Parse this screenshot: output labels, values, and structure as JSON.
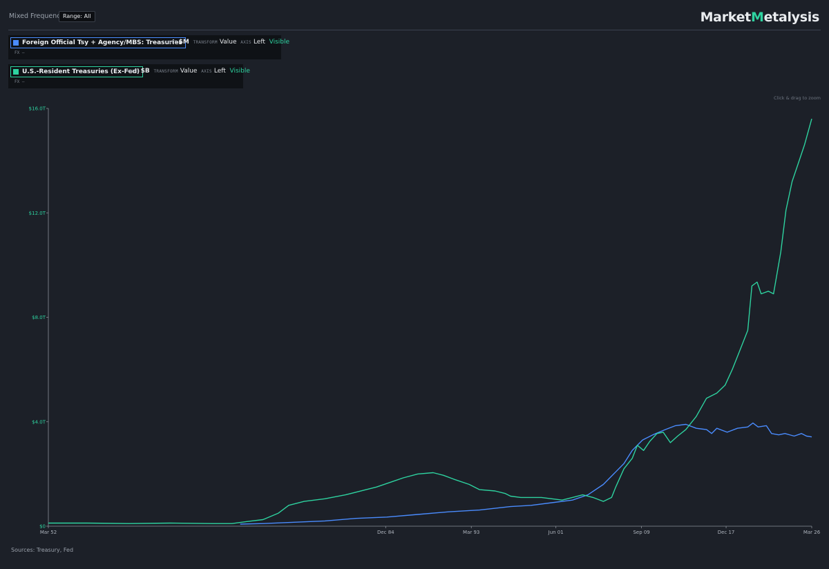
{
  "header": {
    "mode_label": "Mixed Frequency",
    "range_button": "Range: All",
    "logo_part1": "Market",
    "logo_m": "M",
    "logo_part2": "etalysis",
    "zoom_hint": "Click & drag to zoom"
  },
  "series_cards": [
    {
      "name": "Foreign Official Tsy + Agency/MBS: Treasuries",
      "color": "#4a8cff",
      "unit_key": "UNIT",
      "unit": "$M",
      "transform_key": "TRANSFORM",
      "transform": "Value",
      "axis_key": "AXIS",
      "axis": "Left",
      "visibility": "Visible",
      "fx": "FX —"
    },
    {
      "name": "U.S.-Resident Treasuries (Ex-Fed)",
      "color": "#2ed3a0",
      "unit_key": "UNIT",
      "unit": "$B",
      "transform_key": "TRANSFORM",
      "transform": "Value",
      "axis_key": "AXIS",
      "axis": "Left",
      "visibility": "Visible",
      "fx": "FX —"
    }
  ],
  "footer": {
    "sources": "Sources: Treasury, Fed"
  },
  "chart_data": {
    "type": "line",
    "title": "",
    "xlabel": "",
    "ylabel": "",
    "x_tick_labels": [
      "Mar 52",
      "Dec 84",
      "Mar 93",
      "Jun 01",
      "Sep 09",
      "Dec 17",
      "Mar 26"
    ],
    "x_tick_years": [
      1952.2,
      1984.9,
      1993.2,
      2001.4,
      2009.7,
      2017.9,
      2026.2
    ],
    "y_tick_labels": [
      "$0",
      "$4.0T",
      "$8.0T",
      "$12.0T",
      "$16.0T"
    ],
    "y_tick_values": [
      0,
      4,
      8,
      12,
      16
    ],
    "ylim": [
      0,
      16
    ],
    "xlim": [
      1952.2,
      2026.2
    ],
    "grid": false,
    "legend": "top-left",
    "series": [
      {
        "name": "Foreign Official Tsy + Agency/MBS: Treasuries",
        "color": "#4a8cff",
        "points": [
          [
            1970.8,
            0.08
          ],
          [
            1973,
            0.1
          ],
          [
            1976,
            0.15
          ],
          [
            1979,
            0.2
          ],
          [
            1982,
            0.3
          ],
          [
            1985,
            0.35
          ],
          [
            1988,
            0.45
          ],
          [
            1991,
            0.55
          ],
          [
            1994,
            0.62
          ],
          [
            1997,
            0.75
          ],
          [
            1999,
            0.8
          ],
          [
            2001,
            0.9
          ],
          [
            2003,
            1.0
          ],
          [
            2004.5,
            1.2
          ],
          [
            2006,
            1.6
          ],
          [
            2007,
            2.0
          ],
          [
            2008,
            2.4
          ],
          [
            2008.8,
            2.9
          ],
          [
            2009.8,
            3.3
          ],
          [
            2010.8,
            3.5
          ],
          [
            2012,
            3.7
          ],
          [
            2013,
            3.85
          ],
          [
            2014,
            3.9
          ],
          [
            2015,
            3.75
          ],
          [
            2016,
            3.7
          ],
          [
            2016.5,
            3.55
          ],
          [
            2017,
            3.75
          ],
          [
            2018,
            3.6
          ],
          [
            2019,
            3.75
          ],
          [
            2020,
            3.8
          ],
          [
            2020.5,
            3.95
          ],
          [
            2021,
            3.8
          ],
          [
            2021.8,
            3.85
          ],
          [
            2022.3,
            3.55
          ],
          [
            2023,
            3.5
          ],
          [
            2023.6,
            3.55
          ],
          [
            2024.5,
            3.45
          ],
          [
            2025.2,
            3.55
          ],
          [
            2025.7,
            3.45
          ],
          [
            2026.2,
            3.42
          ]
        ]
      },
      {
        "name": "U.S.-Resident Treasuries (Ex-Fed)",
        "color": "#2ed3a0",
        "points": [
          [
            1952.2,
            0.12
          ],
          [
            1956,
            0.12
          ],
          [
            1960,
            0.1
          ],
          [
            1964,
            0.12
          ],
          [
            1968,
            0.1
          ],
          [
            1970,
            0.1
          ],
          [
            1971.5,
            0.18
          ],
          [
            1973,
            0.25
          ],
          [
            1974.5,
            0.5
          ],
          [
            1975.5,
            0.8
          ],
          [
            1977,
            0.95
          ],
          [
            1979,
            1.05
          ],
          [
            1981,
            1.2
          ],
          [
            1983,
            1.4
          ],
          [
            1984,
            1.5
          ],
          [
            1985.5,
            1.7
          ],
          [
            1986.6,
            1.85
          ],
          [
            1988,
            2.0
          ],
          [
            1989.5,
            2.05
          ],
          [
            1990.5,
            1.95
          ],
          [
            1991.5,
            1.8
          ],
          [
            1993,
            1.6
          ],
          [
            1994,
            1.4
          ],
          [
            1995.5,
            1.35
          ],
          [
            1996.5,
            1.25
          ],
          [
            1997,
            1.15
          ],
          [
            1998,
            1.1
          ],
          [
            1999,
            1.1
          ],
          [
            2000,
            1.1
          ],
          [
            2001,
            1.05
          ],
          [
            2002,
            1.0
          ],
          [
            2003,
            1.1
          ],
          [
            2004,
            1.2
          ],
          [
            2005,
            1.1
          ],
          [
            2006,
            0.95
          ],
          [
            2006.8,
            1.1
          ],
          [
            2007.2,
            1.5
          ],
          [
            2008,
            2.2
          ],
          [
            2008.8,
            2.6
          ],
          [
            2009.3,
            3.1
          ],
          [
            2009.9,
            2.9
          ],
          [
            2010.5,
            3.25
          ],
          [
            2011.2,
            3.55
          ],
          [
            2011.8,
            3.6
          ],
          [
            2012.5,
            3.2
          ],
          [
            2013.2,
            3.45
          ],
          [
            2014,
            3.7
          ],
          [
            2015,
            4.2
          ],
          [
            2016,
            4.9
          ],
          [
            2017,
            5.1
          ],
          [
            2017.8,
            5.4
          ],
          [
            2018.5,
            6.0
          ],
          [
            2019.5,
            7.0
          ],
          [
            2020,
            7.5
          ],
          [
            2020.4,
            9.2
          ],
          [
            2020.9,
            9.35
          ],
          [
            2021.3,
            8.9
          ],
          [
            2022,
            9.0
          ],
          [
            2022.5,
            8.9
          ],
          [
            2023.2,
            10.5
          ],
          [
            2023.7,
            12.1
          ],
          [
            2024.3,
            13.2
          ],
          [
            2024.9,
            13.9
          ],
          [
            2025.5,
            14.6
          ],
          [
            2026.2,
            15.6
          ]
        ]
      }
    ]
  }
}
